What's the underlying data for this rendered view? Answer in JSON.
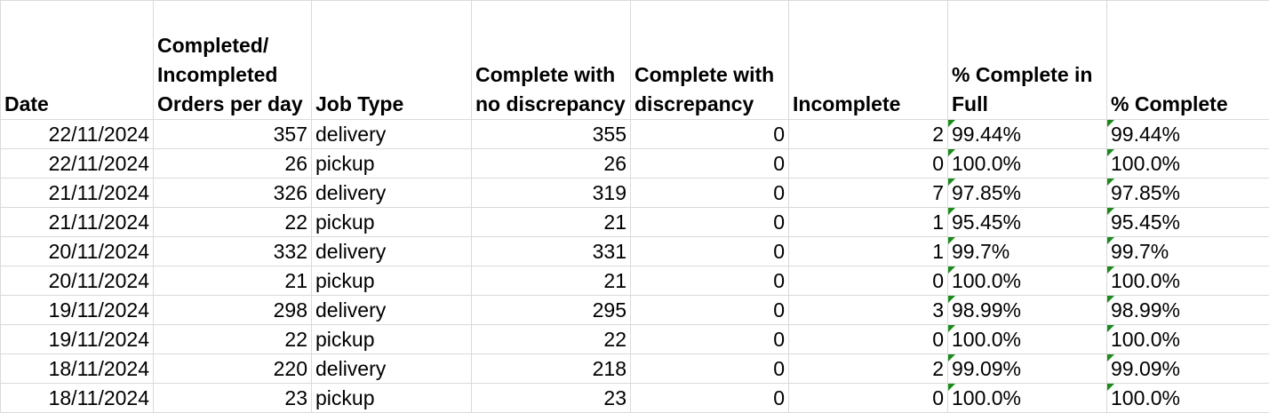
{
  "headers": [
    "Date",
    "Completed/ Incompleted Orders per day",
    "Job Type",
    "Complete with no discrepancy",
    "Complete with discrepancy",
    "Incomplete",
    "% Complete in Full",
    "% Complete"
  ],
  "rows": [
    [
      "22/11/2024",
      "357",
      "delivery",
      "355",
      "0",
      "2",
      "99.44%",
      "99.44%"
    ],
    [
      "22/11/2024",
      "26",
      "pickup",
      "26",
      "0",
      "0",
      "100.0%",
      "100.0%"
    ],
    [
      "21/11/2024",
      "326",
      "delivery",
      "319",
      "0",
      "7",
      "97.85%",
      "97.85%"
    ],
    [
      "21/11/2024",
      "22",
      "pickup",
      "21",
      "0",
      "1",
      "95.45%",
      "95.45%"
    ],
    [
      "20/11/2024",
      "332",
      "delivery",
      "331",
      "0",
      "1",
      "99.7%",
      "99.7%"
    ],
    [
      "20/11/2024",
      "21",
      "pickup",
      "21",
      "0",
      "0",
      "100.0%",
      "100.0%"
    ],
    [
      "19/11/2024",
      "298",
      "delivery",
      "295",
      "0",
      "3",
      "98.99%",
      "98.99%"
    ],
    [
      "19/11/2024",
      "22",
      "pickup",
      "22",
      "0",
      "0",
      "100.0%",
      "100.0%"
    ],
    [
      "18/11/2024",
      "220",
      "delivery",
      "218",
      "0",
      "2",
      "99.09%",
      "99.09%"
    ],
    [
      "18/11/2024",
      "23",
      "pickup",
      "23",
      "0",
      "0",
      "100.0%",
      "100.0%"
    ]
  ],
  "colors": {
    "gridline": "#dadada",
    "indicator": "#1a8a1a"
  }
}
